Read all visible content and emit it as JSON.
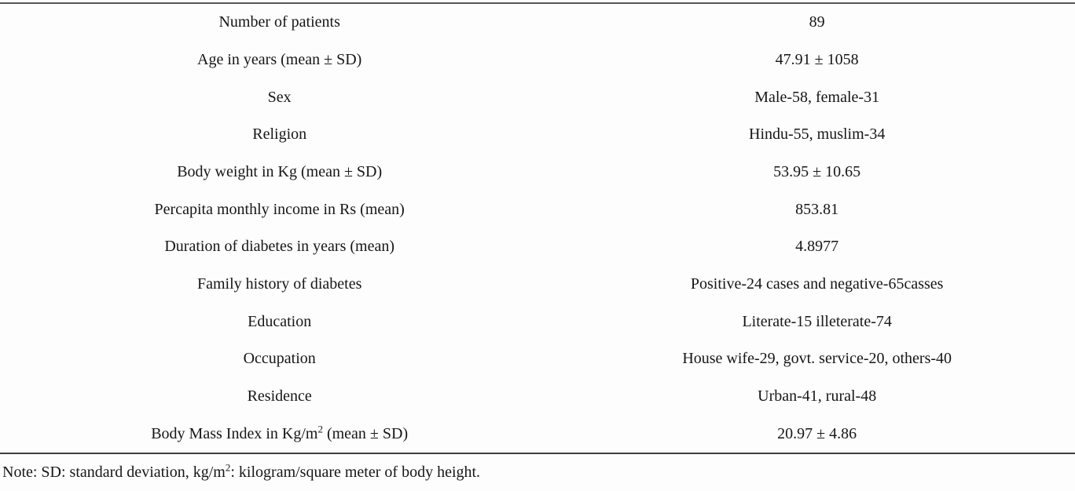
{
  "table": {
    "rows": [
      {
        "label": "Number of patients",
        "value": "89"
      },
      {
        "label": "Age in years (mean ± SD)",
        "value": "47.91 ± 1058"
      },
      {
        "label": "Sex",
        "value": "Male-58, female-31"
      },
      {
        "label": "Religion",
        "value": "Hindu-55, muslim-34"
      },
      {
        "label": "Body weight in Kg (mean ± SD)",
        "value": "53.95 ± 10.65"
      },
      {
        "label": "Percapita monthly income in Rs (mean)",
        "value": "853.81"
      },
      {
        "label": "Duration of diabetes in years (mean)",
        "value": "4.8977"
      },
      {
        "label": "Family history of diabetes",
        "value": "Positive-24 cases and negative-65casses"
      },
      {
        "label": "Education",
        "value": "Literate-15 illeterate-74"
      },
      {
        "label": "Occupation",
        "value": "House wife-29, govt. service-20, others-40"
      },
      {
        "label": "Residence",
        "value": "Urban-41, rural-48"
      },
      {
        "label": {
          "pre": "Body Mass Index in Kg/m",
          "sup": "2",
          "post": " (mean ± SD)"
        },
        "value": "20.97 ± 4.86"
      }
    ]
  },
  "footnote": {
    "pre": "Note: SD: standard deviation, kg/m",
    "sup": "2",
    "post": ": kilogram/square meter of body height."
  },
  "colors": {
    "text": "#161616",
    "top_rule": "#575757",
    "bottom_rule": "#3d3d3d",
    "background": "#fdfdfd"
  }
}
